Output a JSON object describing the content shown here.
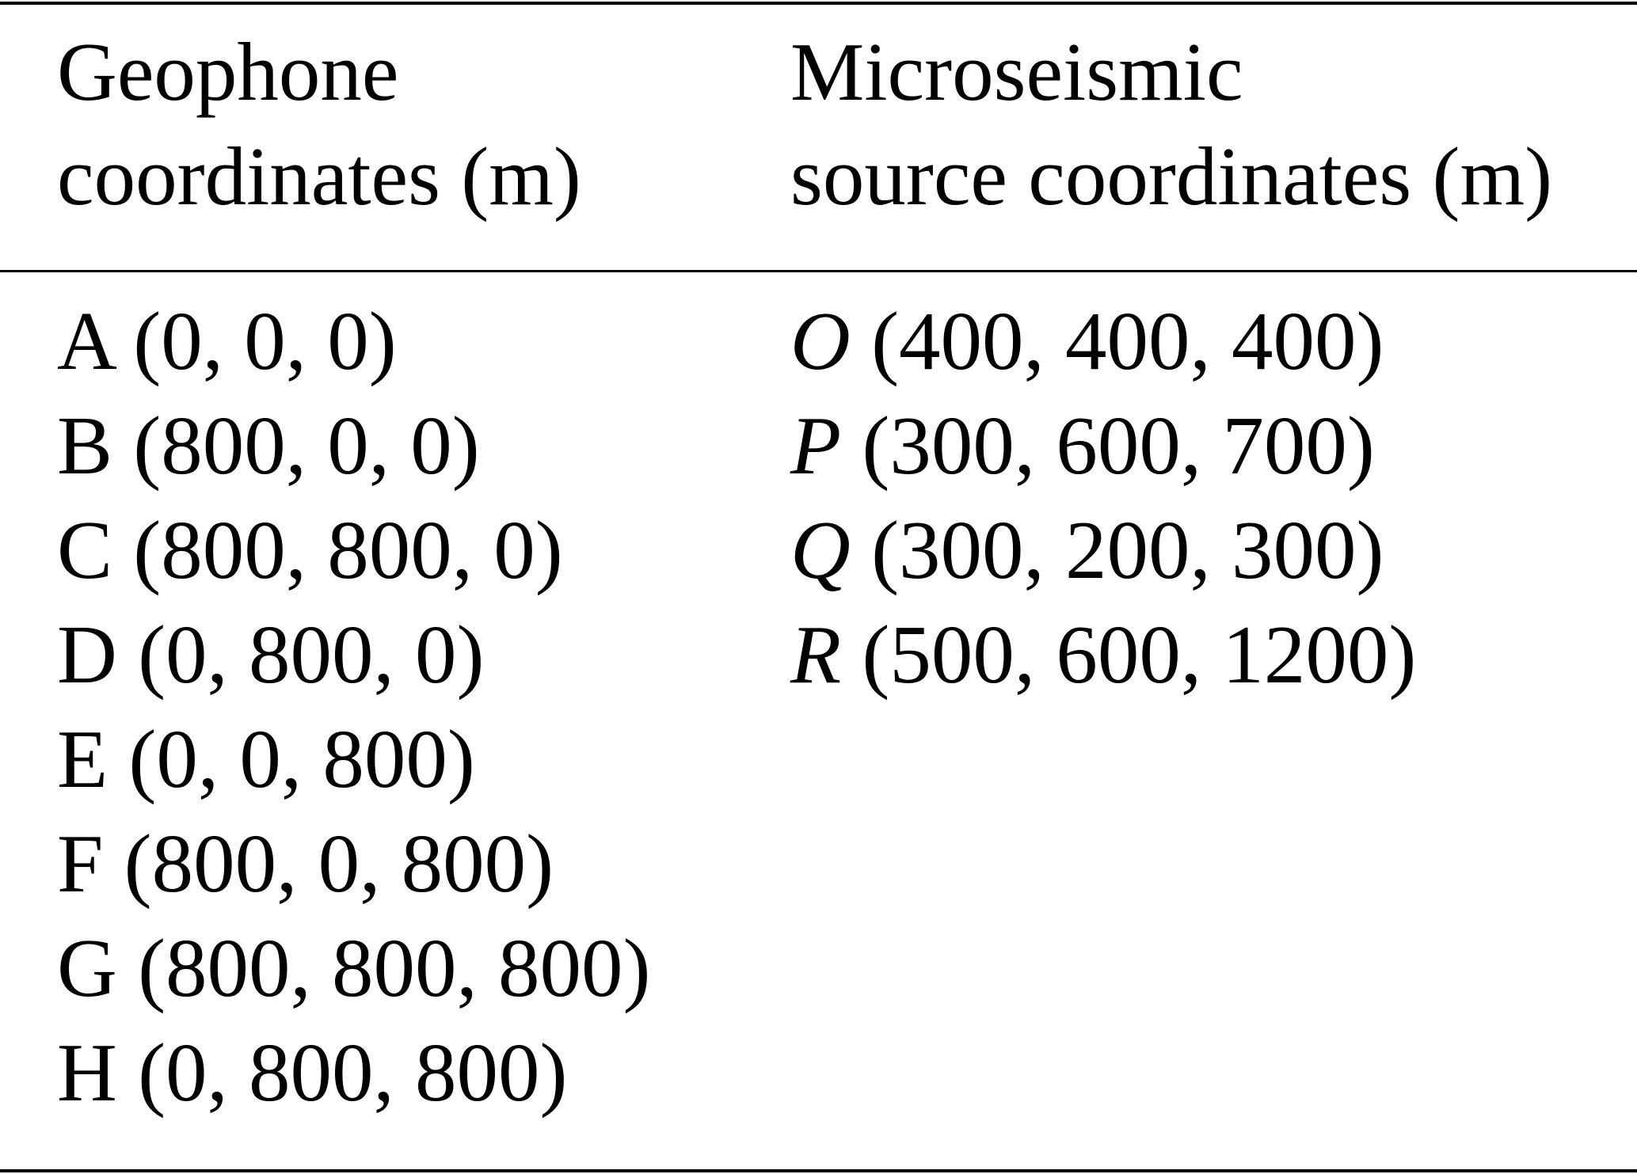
{
  "table": {
    "headers": [
      [
        "Geophone",
        "coordinates (m)"
      ],
      [
        "Microseismic",
        "source coordinates (m)"
      ]
    ],
    "geophones": [
      {
        "label": "A",
        "coords": "(0, 0, 0)"
      },
      {
        "label": "B",
        "coords": "(800, 0, 0)"
      },
      {
        "label": "C",
        "coords": "(800, 800, 0)"
      },
      {
        "label": "D",
        "coords": "(0, 800, 0)"
      },
      {
        "label": "E",
        "coords": "(0, 0, 800)"
      },
      {
        "label": "F",
        "coords": "(800, 0, 800)"
      },
      {
        "label": "G",
        "coords": "(800, 800, 800)"
      },
      {
        "label": "H",
        "coords": "(0, 800, 800)"
      }
    ],
    "sources": [
      {
        "label": "O",
        "coords": "(400, 400, 400)"
      },
      {
        "label": "P",
        "coords": "(300, 600, 700)"
      },
      {
        "label": "Q",
        "coords": "(300, 200, 300)"
      },
      {
        "label": "R",
        "coords": "(500, 600, 1200)"
      }
    ]
  }
}
